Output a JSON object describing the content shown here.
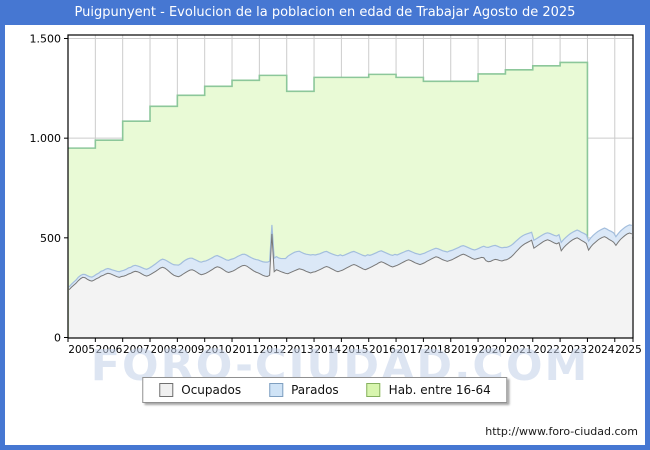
{
  "title": "Puigpunyent - Evolucion de la poblacion en edad de Trabajar Agosto de 2025",
  "watermark": "FORO-CIUDAD.COM",
  "footer": {
    "url": "http://www.foro-ciudad.com"
  },
  "legend": [
    {
      "label": "Ocupados",
      "fill": "#f0f0f0",
      "stroke": "#707070"
    },
    {
      "label": "Parados",
      "fill": "#cfe3f6",
      "stroke": "#7f9fc0"
    },
    {
      "label": "Hab. entre 16-64",
      "fill": "#d8f5ae",
      "stroke": "#86b060"
    }
  ],
  "colors": {
    "frame_blue": "#4677d2",
    "title_text": "#ffffff",
    "plot_border": "#000000",
    "grid": "#cccccc",
    "hab_fill": "#e9fad6",
    "hab_stroke": "#8cc79a",
    "parados_fill": "#dbe8f7",
    "parados_stroke": "#a3bedd",
    "ocupados_fill": "#f3f3f3",
    "ocupados_stroke": "#787878",
    "axis_text": "#000000"
  },
  "chart_data": {
    "type": "area",
    "title": "Puigpunyent - Evolucion de la poblacion en edad de Trabajar Agosto de 2025",
    "x_start": "2005-01",
    "x_end": "2025-08",
    "ylim": [
      0,
      1500
    ],
    "yticks": [
      {
        "v": 0,
        "label": "0"
      },
      {
        "v": 500,
        "label": "500"
      },
      {
        "v": 1000,
        "label": "1.000"
      },
      {
        "v": 1500,
        "label": "1.500"
      }
    ],
    "years": [
      "2005",
      "2006",
      "2007",
      "2008",
      "2009",
      "2010",
      "2011",
      "2012",
      "2013",
      "2014",
      "2015",
      "2016",
      "2017",
      "2018",
      "2019",
      "2020",
      "2021",
      "2022",
      "2023",
      "2024",
      "2025"
    ],
    "grid": true,
    "legend_position": "bottom-center",
    "series": {
      "ocupados": {
        "label": "Ocupados",
        "monthly": {
          "2005": [
            240,
            252,
            262,
            272,
            285,
            295,
            302,
            300,
            292,
            286,
            283,
            288
          ],
          "2006": [
            295,
            300,
            308,
            312,
            318,
            322,
            320,
            315,
            310,
            305,
            302,
            306
          ],
          "2007": [
            308,
            312,
            318,
            322,
            328,
            332,
            330,
            325,
            318,
            312,
            308,
            312
          ],
          "2008": [
            318,
            325,
            332,
            340,
            348,
            352,
            348,
            340,
            330,
            320,
            312,
            308
          ],
          "2009": [
            305,
            310,
            318,
            325,
            332,
            338,
            340,
            335,
            328,
            320,
            315,
            318
          ],
          "2010": [
            322,
            328,
            335,
            342,
            350,
            355,
            352,
            346,
            338,
            330,
            326,
            330
          ],
          "2011": [
            334,
            340,
            348,
            354,
            360,
            362,
            358,
            350,
            342,
            334,
            328,
            324
          ],
          "2012": [
            318,
            312,
            308,
            306,
            312,
            520,
            330,
            340,
            335,
            330,
            326,
            322
          ],
          "2013": [
            320,
            325,
            330,
            335,
            340,
            345,
            342,
            338,
            332,
            328,
            324,
            328
          ],
          "2014": [
            330,
            335,
            340,
            346,
            352,
            356,
            352,
            346,
            340,
            334,
            330,
            334
          ],
          "2015": [
            338,
            344,
            350,
            356,
            362,
            366,
            362,
            356,
            350,
            344,
            340,
            345
          ],
          "2016": [
            350,
            356,
            362,
            368,
            375,
            380,
            376,
            370,
            364,
            358,
            354,
            358
          ],
          "2017": [
            362,
            368,
            374,
            380,
            386,
            390,
            386,
            380,
            374,
            370,
            366,
            370
          ],
          "2018": [
            375,
            382,
            388,
            394,
            400,
            405,
            402,
            396,
            390,
            386,
            382,
            386
          ],
          "2019": [
            390,
            396,
            402,
            408,
            414,
            418,
            414,
            408,
            402,
            396,
            392,
            395
          ],
          "2020": [
            398,
            402,
            400,
            385,
            380,
            382,
            388,
            392,
            390,
            386,
            384,
            388
          ],
          "2021": [
            390,
            396,
            404,
            415,
            428,
            440,
            452,
            462,
            470,
            476,
            482,
            488
          ],
          "2022": [
            448,
            456,
            464,
            472,
            480,
            486,
            490,
            486,
            480,
            474,
            470,
            476
          ],
          "2023": [
            435,
            450,
            462,
            472,
            482,
            490,
            496,
            500,
            494,
            486,
            480,
            472
          ],
          "2024": [
            438,
            455,
            468,
            478,
            488,
            496,
            502,
            506,
            500,
            492,
            486,
            478
          ],
          "2025": [
            462,
            478,
            492,
            502,
            512,
            520,
            524,
            520
          ]
        }
      },
      "parados": {
        "label": "Parados",
        "monthly": {
          "2005": [
            14,
            15,
            16,
            16,
            17,
            16,
            15,
            16,
            18,
            19,
            20,
            21
          ],
          "2006": [
            22,
            23,
            24,
            24,
            25,
            24,
            23,
            24,
            26,
            27,
            28,
            28
          ],
          "2007": [
            29,
            30,
            31,
            30,
            31,
            30,
            29,
            30,
            32,
            33,
            34,
            35
          ],
          "2008": [
            36,
            37,
            38,
            39,
            40,
            41,
            42,
            44,
            47,
            50,
            53,
            56
          ],
          "2009": [
            58,
            60,
            62,
            63,
            62,
            60,
            58,
            57,
            59,
            61,
            63,
            64
          ],
          "2010": [
            62,
            61,
            60,
            59,
            58,
            56,
            54,
            55,
            57,
            59,
            61,
            62
          ],
          "2011": [
            61,
            60,
            59,
            58,
            57,
            56,
            55,
            56,
            58,
            61,
            63,
            65
          ],
          "2012": [
            66,
            68,
            70,
            72,
            70,
            45,
            68,
            66,
            64,
            66,
            70,
            74
          ],
          "2013": [
            88,
            90,
            92,
            93,
            91,
            88,
            85,
            84,
            86,
            88,
            90,
            88
          ],
          "2014": [
            84,
            82,
            80,
            79,
            78,
            76,
            74,
            75,
            77,
            79,
            80,
            81
          ],
          "2015": [
            72,
            70,
            69,
            68,
            67,
            66,
            65,
            66,
            67,
            68,
            69,
            70
          ],
          "2016": [
            62,
            60,
            59,
            58,
            57,
            55,
            54,
            55,
            56,
            57,
            58,
            59
          ],
          "2017": [
            52,
            51,
            50,
            49,
            48,
            47,
            46,
            47,
            48,
            49,
            50,
            50
          ],
          "2018": [
            48,
            47,
            46,
            45,
            44,
            43,
            43,
            44,
            45,
            46,
            47,
            48
          ],
          "2019": [
            47,
            46,
            45,
            44,
            44,
            43,
            43,
            44,
            45,
            46,
            47,
            48
          ],
          "2020": [
            50,
            52,
            58,
            68,
            72,
            74,
            72,
            70,
            68,
            67,
            66,
            64
          ],
          "2021": [
            62,
            60,
            58,
            56,
            54,
            52,
            50,
            48,
            46,
            44,
            42,
            40
          ],
          "2022": [
            40,
            39,
            38,
            37,
            36,
            36,
            35,
            36,
            37,
            38,
            39,
            40
          ],
          "2023": [
            42,
            41,
            40,
            40,
            39,
            38,
            38,
            39,
            40,
            41,
            42,
            43
          ],
          "2024": [
            46,
            45,
            44,
            44,
            43,
            42,
            42,
            43,
            44,
            45,
            46,
            47
          ],
          "2025": [
            44,
            43,
            42,
            42,
            41,
            40,
            41,
            42
          ]
        }
      },
      "hab_16_64": {
        "label": "Hab. entre 16-64",
        "yearly": {
          "2005": 950,
          "2006": 990,
          "2007": 1085,
          "2008": 1160,
          "2009": 1215,
          "2010": 1260,
          "2011": 1290,
          "2012": 1315,
          "2013": 1235,
          "2014": 1305,
          "2015": 1305,
          "2016": 1320,
          "2017": 1305,
          "2018": 1285,
          "2019": 1285,
          "2020": 1322,
          "2021": 1343,
          "2022": 1363,
          "2023": 1380
        },
        "ends": "2023-12"
      }
    }
  }
}
